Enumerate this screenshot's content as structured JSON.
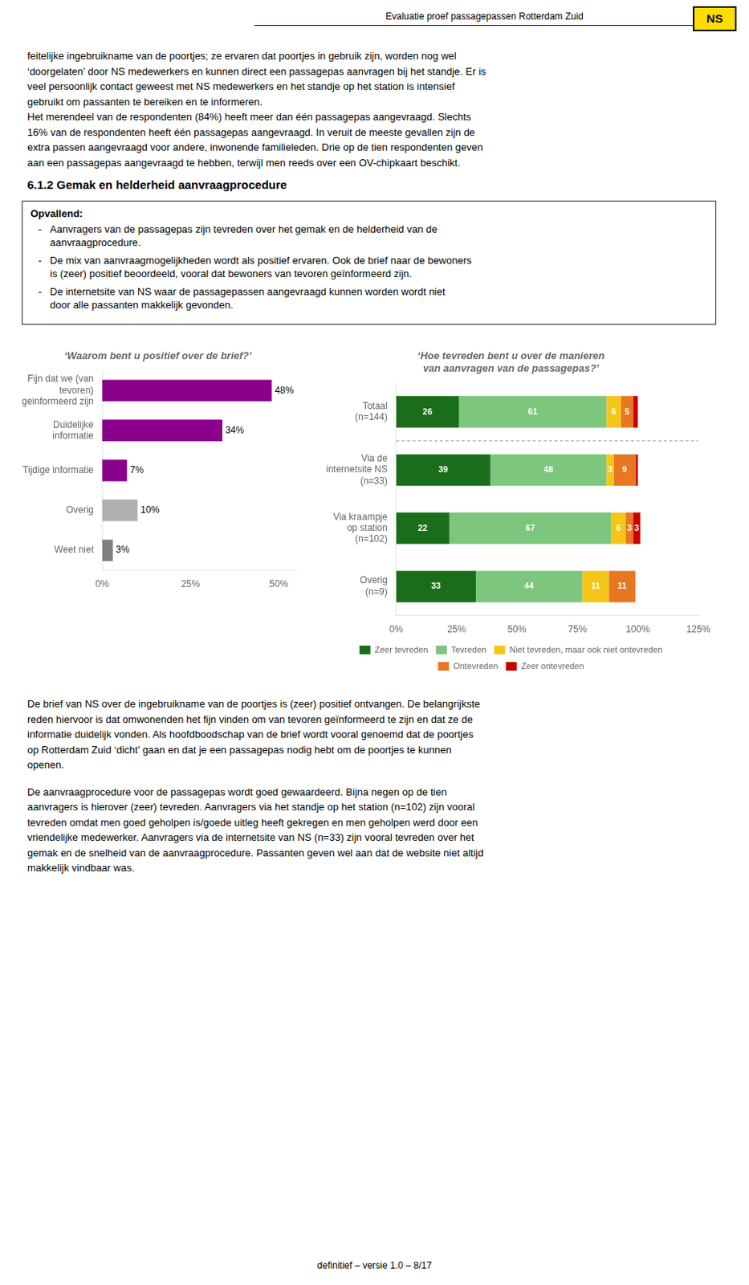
{
  "page_title": "Evaluatie proef passagepassen Rotterdam Zuid",
  "logo": "NS",
  "paragraph": [
    "feitelijke ingebruikname van de poortjes; ze ervaren dat poortjes in gebruik zijn, worden nog wel",
    "‘doorgelaten’ door NS medewerkers en kunnen direct een passagepas aanvragen bij het standje. Er is",
    "veel persoonlijk contact geweest met NS medewerkers en het standje op het station is intensief",
    "gebruikt om passanten te bereiken en te informeren.",
    "Het merendeel van de respondenten (84%) heeft meer dan één passagepas aangevraagd. Slechts",
    "16% van de respondenten heeft één passagepas aangevraagd. In veruit de meeste gevallen zijn de",
    "extra passen aangevraagd voor andere, inwonende familieleden. Drie op de tien respondenten geven",
    "aan een passagepas aangevraagd te hebben, terwijl men reeds over een OV-chipkaart beschikt."
  ],
  "section_title": "6.1.2   Gemak en helderheid aanvraagprocedure",
  "box_title": "Opvallend:",
  "box_bullet_mark": "-",
  "box_bullets": [
    [
      "Aanvragers van de passagepas zijn tevreden over het gemak en de helderheid van de",
      "aanvraagprocedure."
    ],
    [
      "De mix van aanvraagmogelijkheden wordt als positief ervaren. Ook de brief naar de bewoners",
      "is (zeer) positief beoordeeld, vooral dat bewoners van tevoren geïnformeerd zijn."
    ],
    [
      "De internetsite van NS waar de passagepassen aangevraagd kunnen worden wordt niet",
      "door alle passanten makkelijk gevonden."
    ]
  ],
  "chart_data": [
    {
      "type": "bar",
      "orientation": "horizontal",
      "title": "‘Waarom bent u positief over de brief?’",
      "categories": [
        "Fijn dat we (van\ntevoren)\ngeinformeerd zijn",
        "Duidelijke\ninformatie",
        "Tijdige informatie",
        "Overig",
        "Weet niet"
      ],
      "values": [
        48,
        34,
        7,
        10,
        3
      ],
      "value_labels": [
        "48%",
        "34%",
        "7%",
        "10%",
        "3%"
      ],
      "colors": [
        "#8B008B",
        "#8B008B",
        "#8B008B",
        "#B0B0B0",
        "#808080"
      ],
      "xlim": [
        0,
        55
      ],
      "xticks": [
        {
          "value": 0,
          "label": "0%"
        },
        {
          "value": 25,
          "label": "25%"
        },
        {
          "value": 50,
          "label": "50%"
        }
      ],
      "grid": false,
      "data_labels": true
    },
    {
      "type": "bar",
      "orientation": "horizontal",
      "stacked": true,
      "title": "‘Hoe tevreden bent u over de manieren\nvan aanvragen van de passagepas?’",
      "categories": [
        "Totaal\n(n=144)",
        "Via de\ninternetsite NS\n(n=33)",
        "Via kraampje\nop station\n(n=102)",
        "Overig\n(n=9)"
      ],
      "series": [
        {
          "name": "Zeer tevreden",
          "color": "#1a6e1a",
          "values": [
            26,
            39,
            22,
            33
          ],
          "value_labels": [
            "26",
            "39",
            "22",
            "33"
          ]
        },
        {
          "name": "Tevreden",
          "color": "#7dc67d",
          "values": [
            61,
            48,
            67,
            44
          ],
          "value_labels": [
            "61",
            "48",
            "67",
            "44"
          ]
        },
        {
          "name": "Niet tevreden, maar ook niet ontevreden",
          "color": "#f5c518",
          "values": [
            6,
            3,
            6,
            11
          ],
          "value_labels": [
            "6",
            "3",
            "6",
            "11"
          ]
        },
        {
          "name": "Ontevreden",
          "color": "#E87722",
          "values": [
            5,
            9,
            3,
            11
          ],
          "value_labels": [
            "5",
            "9",
            "3",
            "11"
          ]
        },
        {
          "name": "Zeer ontevreden",
          "color": "#cc0000",
          "values": [
            2,
            1,
            3,
            0
          ],
          "value_labels": [
            null,
            null,
            "3",
            null
          ]
        }
      ],
      "xlim": [
        0,
        125
      ],
      "xticks": [
        {
          "value": 0,
          "label": "0%"
        },
        {
          "value": 25,
          "label": "25%"
        },
        {
          "value": 50,
          "label": "50%"
        },
        {
          "value": 75,
          "label": "75%"
        },
        {
          "value": 100,
          "label": "100%"
        },
        {
          "value": 125,
          "label": "125%"
        }
      ],
      "grid": false,
      "legend": "bottom",
      "data_labels": true
    }
  ],
  "footer1": [
    "De brief van NS over de ingebruikname van de poortjes is (zeer) positief ontvangen. De belangrijkste",
    "reden hiervoor is dat omwonenden het fijn vinden om van tevoren geïnformeerd te zijn en dat ze de",
    "informatie duidelijk vonden. Als hoofdboodschap van de brief wordt vooral genoemd dat de poortjes",
    "op Rotterdam Zuid ‘dicht’ gaan en dat je een passagepas nodig hebt om de poortjes te kunnen",
    "openen."
  ],
  "footer2": [
    "De aanvraagprocedure voor de passagepas wordt goed gewaardeerd. Bijna negen op de tien",
    "aanvragers is hierover (zeer) tevreden. Aanvragers via het standje op het station (n=102) zijn vooral",
    "tevreden omdat men goed geholpen is/goede uitleg heeft gekregen en men geholpen werd door een",
    "vriendelijke medewerker. Aanvragers via de internetsite van NS (n=33) zijn vooral tevreden over het",
    "gemak en de snelheid van de aanvraagprocedure. Passanten geven wel aan dat de website niet altijd",
    "makkelijk vindbaar was."
  ],
  "page_number": "definitief – versie 1.0 – 8/17"
}
